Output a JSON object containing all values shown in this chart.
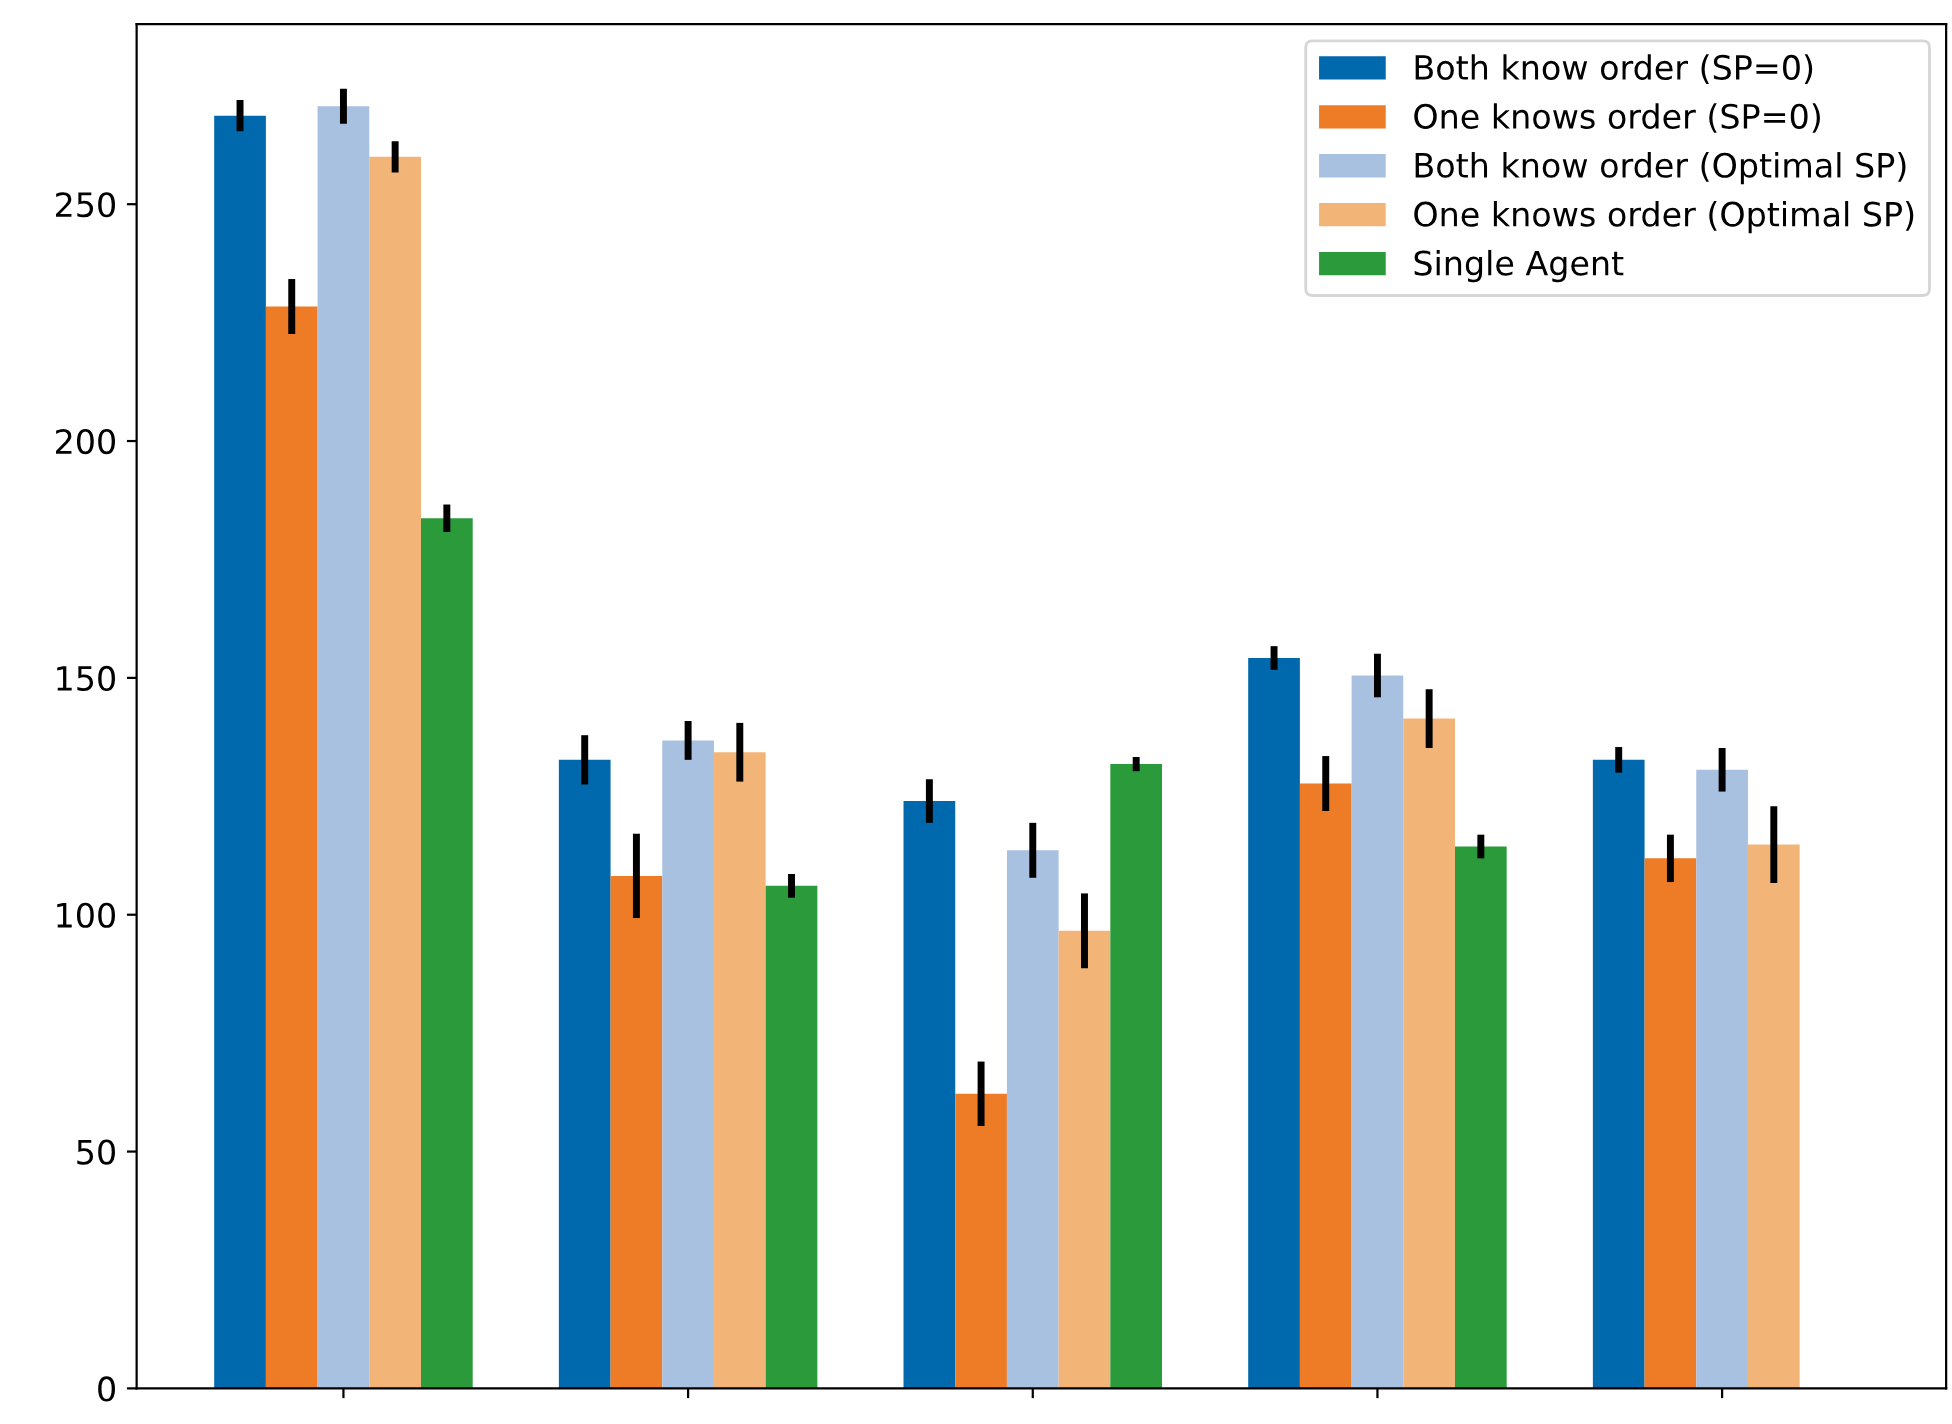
{
  "chart_data": {
    "type": "bar",
    "categories": [
      null,
      null,
      null,
      null,
      null
    ],
    "series": [
      {
        "name": "Both know order (SP=0)",
        "color": "#0068ad",
        "values": [
          268.7,
          132.7,
          124.0,
          154.2,
          132.7
        ],
        "errors": [
          3.3,
          5.2,
          4.6,
          2.5,
          2.7
        ]
      },
      {
        "name": "One knows order (SP=0)",
        "color": "#ee7b26",
        "values": [
          228.4,
          108.2,
          62.2,
          127.7,
          111.9
        ],
        "errors": [
          5.8,
          8.9,
          6.8,
          5.8,
          5.0
        ]
      },
      {
        "name": "Both know order (Optimal SP)",
        "color": "#a9c1e1",
        "values": [
          270.7,
          136.8,
          113.6,
          150.5,
          130.6
        ],
        "errors": [
          3.7,
          4.1,
          5.8,
          4.6,
          4.6
        ]
      },
      {
        "name": "One knows order (Optimal SP)",
        "color": "#f3b577",
        "values": [
          260.0,
          134.3,
          96.6,
          141.4,
          114.8
        ],
        "errors": [
          3.3,
          6.2,
          7.9,
          6.2,
          8.1
        ]
      },
      {
        "name": "Single Agent",
        "color": "#2a9a3a",
        "values": [
          183.7,
          106.1,
          131.8,
          114.4,
          null
        ],
        "errors": [
          2.9,
          2.5,
          1.5,
          2.5,
          null
        ]
      }
    ],
    "ylim": [
      0,
      288
    ],
    "yticks": [
      0,
      50,
      100,
      150,
      200,
      250
    ],
    "legend": "top right",
    "tick_labels": "y"
  }
}
